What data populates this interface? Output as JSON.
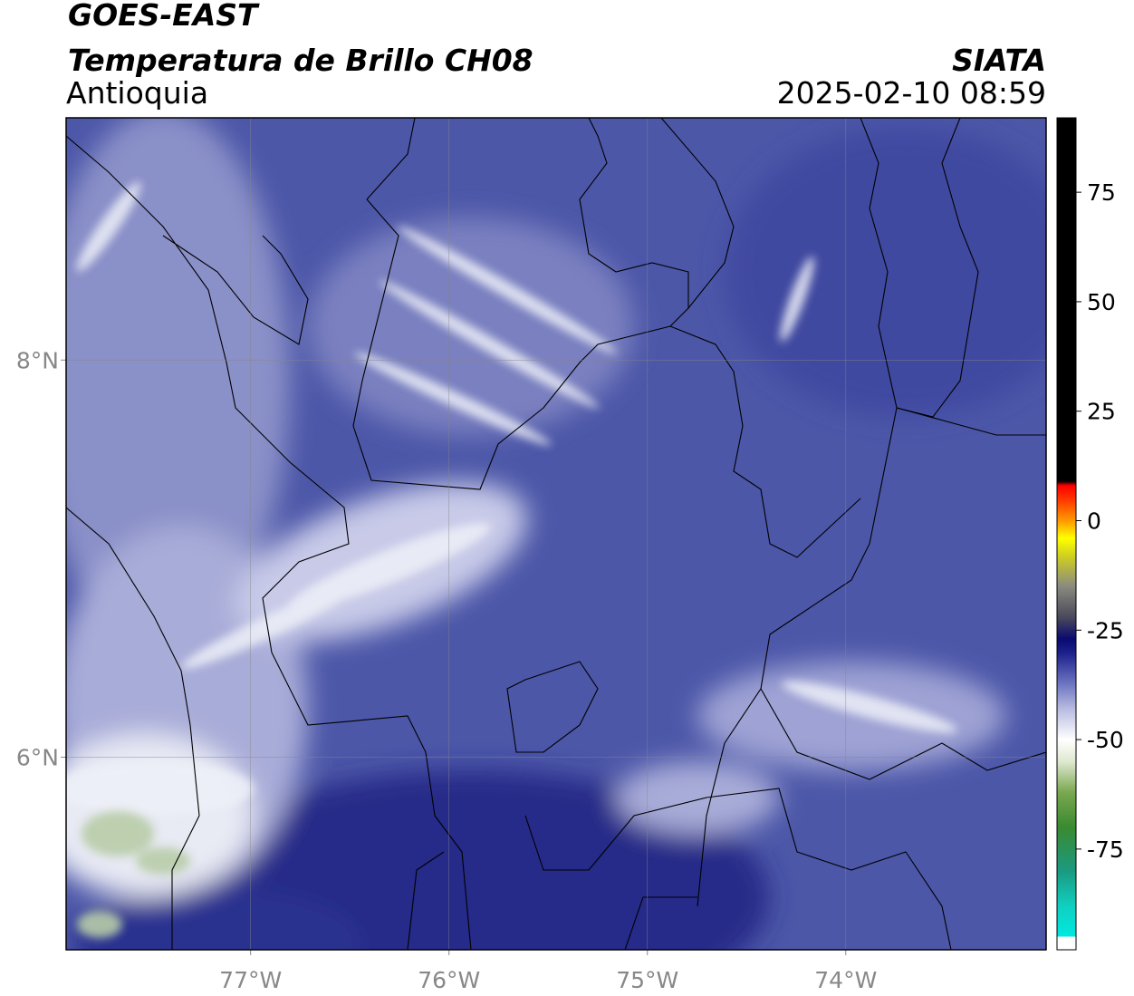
{
  "map": {
    "title": "GOES-EAST",
    "subtitle": "Temperatura de Brillo CH08",
    "region": "Antioquia",
    "source": "SIATA",
    "timestamp": "2025-02-10 08:59",
    "xlim": [
      -77.93,
      -72.99
    ],
    "ylim": [
      5.03,
      9.22
    ],
    "xticks": [
      {
        "value": -77,
        "label": "77°W"
      },
      {
        "value": -76,
        "label": "76°W"
      },
      {
        "value": -75,
        "label": "75°W"
      },
      {
        "value": -74,
        "label": "74°W"
      }
    ],
    "yticks": [
      {
        "value": 8,
        "label": "8°N"
      },
      {
        "value": 6,
        "label": "6°N"
      }
    ],
    "grid": true,
    "colorbar": {
      "lim": [
        -98,
        92
      ],
      "ticks": [
        75,
        50,
        25,
        0,
        -25,
        -50,
        -75
      ],
      "stops": [
        {
          "value": -98,
          "color": "#ffffff"
        },
        {
          "value": -95,
          "color": "#ffffff"
        },
        {
          "value": -95,
          "color": "#00e8e0"
        },
        {
          "value": -88,
          "color": "#10d0c0"
        },
        {
          "value": -80,
          "color": "#1a9a80"
        },
        {
          "value": -70,
          "color": "#3a8a30"
        },
        {
          "value": -62,
          "color": "#7aa850"
        },
        {
          "value": -55,
          "color": "#dfe8d0"
        },
        {
          "value": -50,
          "color": "#ffffff"
        },
        {
          "value": -43,
          "color": "#b8bce0"
        },
        {
          "value": -37,
          "color": "#6a72c0"
        },
        {
          "value": -30,
          "color": "#1a1f8a"
        },
        {
          "value": -27,
          "color": "#0a0a70"
        },
        {
          "value": -22,
          "color": "#4a4a5a"
        },
        {
          "value": -15,
          "color": "#8a8a80"
        },
        {
          "value": -8,
          "color": "#d0d020"
        },
        {
          "value": -4,
          "color": "#ffff00"
        },
        {
          "value": 0,
          "color": "#ff9900"
        },
        {
          "value": 5,
          "color": "#ff3300"
        },
        {
          "value": 8,
          "color": "#ff0000"
        },
        {
          "value": 9,
          "color": "#000000"
        },
        {
          "value": 92,
          "color": "#000000"
        }
      ]
    }
  }
}
